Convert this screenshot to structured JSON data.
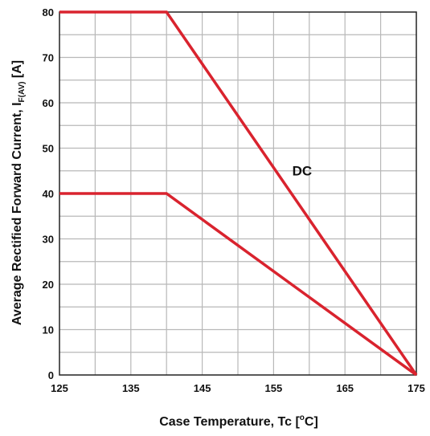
{
  "chart_data": {
    "type": "line",
    "title": "",
    "xlabel": "Case Temperature, Tc [",
    "xlabel_sup": "o",
    "xlabel_unit": "C]",
    "ylabel": "Average Rectified Forward Current, I",
    "ylabel_sub": "F(AV)",
    "ylabel_unit": " [A]",
    "xlim": [
      125,
      175
    ],
    "ylim": [
      0,
      80
    ],
    "x_ticks": [
      125,
      135,
      145,
      155,
      165,
      175
    ],
    "y_ticks": [
      0,
      10,
      20,
      30,
      40,
      50,
      60,
      70,
      80
    ],
    "x_minor_step": 5,
    "y_minor_step": 5,
    "grid": true,
    "line_color": "#d9232e",
    "grid_color": "#b8b8b8",
    "series": [
      {
        "x": [
          125,
          140,
          175
        ],
        "y": [
          80,
          80,
          0
        ]
      },
      {
        "x": [
          125,
          140,
          175
        ],
        "y": [
          40,
          40,
          0
        ]
      }
    ],
    "annotations": [
      {
        "text": "DC",
        "x": 159,
        "y": 44
      }
    ]
  }
}
